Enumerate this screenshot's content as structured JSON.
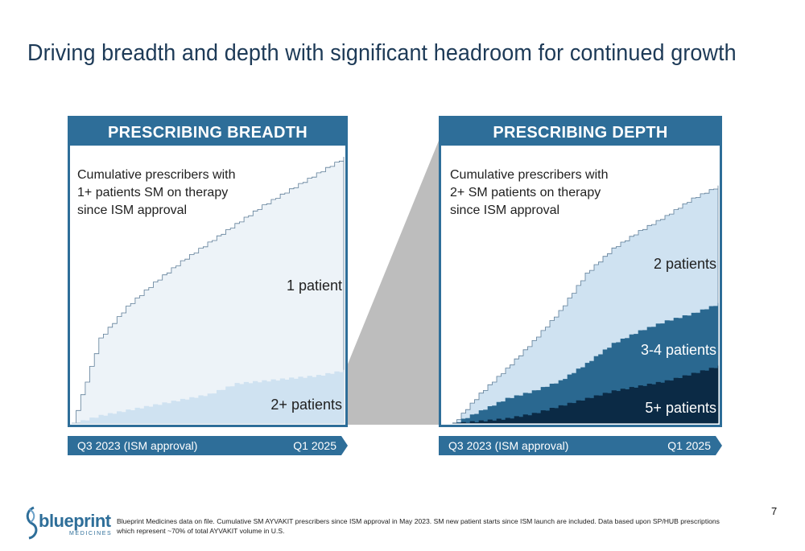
{
  "title": "Driving breadth and depth with significant headroom for continued growth",
  "page_number": "7",
  "footer": "Blueprint Medicines data on file. Cumulative SM AYVAKIT prescribers since ISM approval in May 2023. SM new patient starts since ISM launch are included. Data based upon SP/HUB prescriptions which represent ~70% of total AYVAKIT volume in U.S.",
  "logo": {
    "word": "blueprint",
    "sub": "MEDICINES",
    "icon": "blueprint-spiral-icon"
  },
  "colors": {
    "header": "#2e6e99",
    "light": "#edf3f8",
    "mid": "#cfe2f1",
    "dark": "#2a6890",
    "darkest": "#0b2a45",
    "zoom": "#bdbdbd"
  },
  "left_panel": {
    "header": "PRESCRIBING BREADTH",
    "description": "Cumulative prescribers with\n1+ patients SM on therapy\nsince ISM approval",
    "timeline": {
      "start": "Q3 2023 (ISM approval)",
      "end": "Q1 2025"
    },
    "labels": {
      "one": "1 patient",
      "two_plus": "2+ patients"
    }
  },
  "right_panel": {
    "header": "PRESCRIBING DEPTH",
    "description": "Cumulative prescribers with\n2+ SM patients on therapy\nsince ISM approval",
    "timeline": {
      "start": "Q3 2023 (ISM approval)",
      "end": "Q1 2025"
    },
    "labels": {
      "two": "2 patients",
      "three_four": "3-4 patients",
      "five_plus": "5+ patients"
    }
  },
  "chart_data": [
    {
      "type": "area",
      "title": "PRESCRIBING BREADTH",
      "x_range": [
        "Q3 2023 (ISM approval)",
        "Q1 2025"
      ],
      "y_scale": "relative (no axis printed; values as fraction of panel height)",
      "x": [
        0,
        0.1,
        0.2,
        0.3,
        0.4,
        0.5,
        0.6,
        0.7,
        0.8,
        0.9,
        1.0
      ],
      "series": [
        {
          "name": "1 patient",
          "values": [
            0,
            0.32,
            0.44,
            0.53,
            0.61,
            0.68,
            0.75,
            0.82,
            0.88,
            0.94,
            1.0
          ],
          "color": "#edf3f8"
        },
        {
          "name": "2+ patients",
          "values": [
            0,
            0.03,
            0.05,
            0.07,
            0.09,
            0.11,
            0.15,
            0.16,
            0.17,
            0.18,
            0.2
          ],
          "color": "#cfe2f1"
        }
      ]
    },
    {
      "type": "area",
      "title": "PRESCRIBING DEPTH",
      "x_range": [
        "Q3 2023 (ISM approval)",
        "Q1 2025"
      ],
      "y_scale": "relative (no axis printed; values as fraction of panel height)",
      "x": [
        0,
        0.1,
        0.2,
        0.3,
        0.4,
        0.5,
        0.6,
        0.7,
        0.8,
        0.9,
        1.0
      ],
      "series": [
        {
          "name": "2 patients",
          "values": [
            0,
            0.12,
            0.22,
            0.33,
            0.45,
            0.6,
            0.7,
            0.77,
            0.83,
            0.9,
            0.95
          ],
          "color": "#cfe2f1"
        },
        {
          "name": "3-4 patients",
          "values": [
            0,
            0.05,
            0.1,
            0.13,
            0.17,
            0.24,
            0.32,
            0.37,
            0.41,
            0.44,
            0.48
          ],
          "color": "#2a6890"
        },
        {
          "name": "5+ patients",
          "values": [
            0,
            0.01,
            0.02,
            0.04,
            0.07,
            0.1,
            0.13,
            0.15,
            0.17,
            0.2,
            0.23
          ],
          "color": "#0b2a45"
        }
      ]
    }
  ]
}
